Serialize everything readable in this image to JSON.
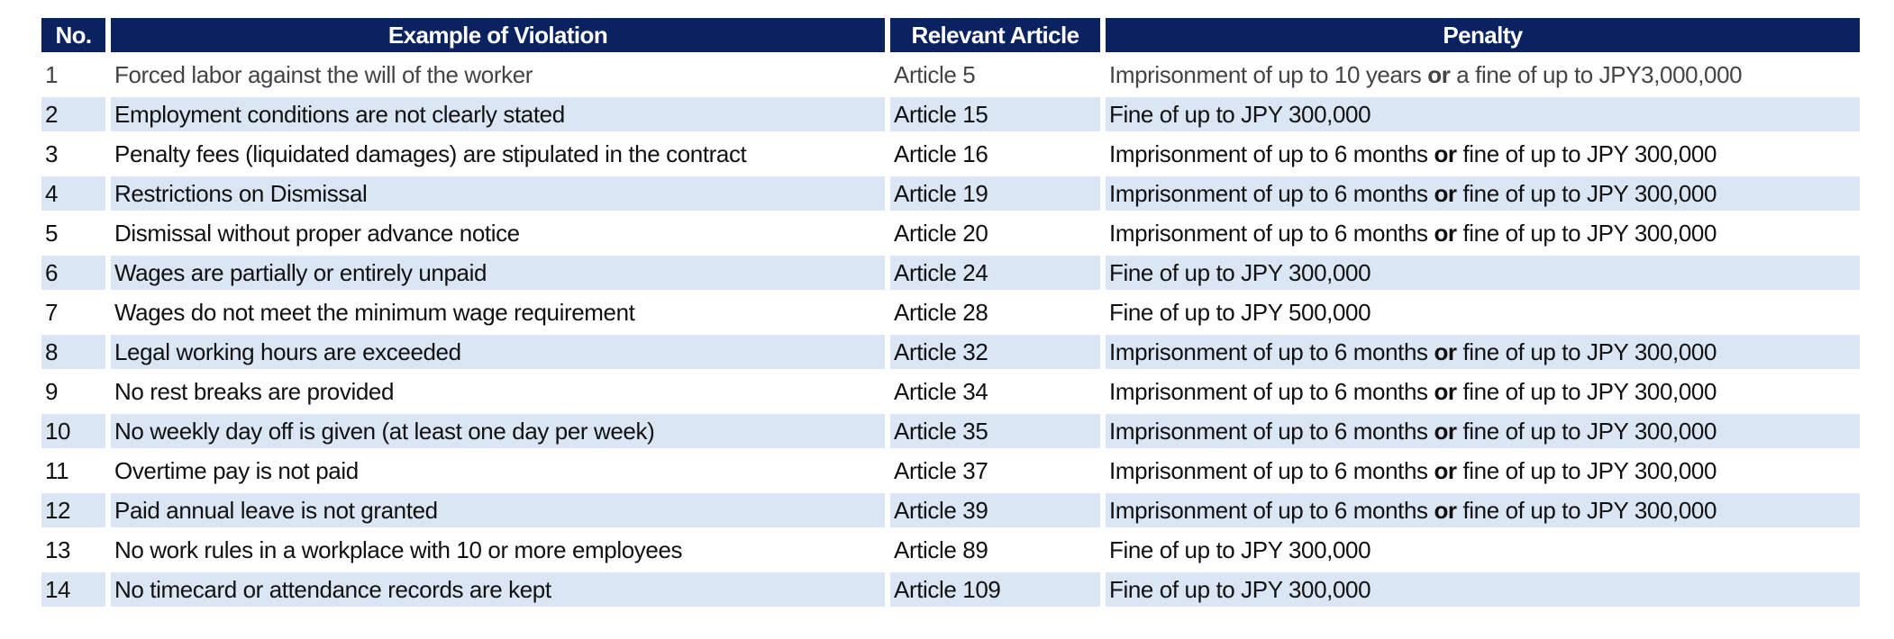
{
  "headers": {
    "no": "No.",
    "violation": "Example of Violation",
    "article": "Relevant Article",
    "penalty": "Penalty"
  },
  "colors": {
    "header_bg": "#0b2260",
    "stripe": "#dbe6f5"
  },
  "rows": [
    {
      "no": "1",
      "violation": "Forced labor against the will of the worker",
      "article": "Article 5",
      "penalty_pre": "Imprisonment of up to 10 years ",
      "penalty_or": "or",
      "penalty_post": " a fine of up to JPY3,000,000"
    },
    {
      "no": "2",
      "violation": "Employment conditions are not clearly stated",
      "article": "Article 15",
      "penalty_pre": "Fine of up to JPY 300,000",
      "penalty_or": "",
      "penalty_post": ""
    },
    {
      "no": "3",
      "violation": "Penalty fees (liquidated damages) are stipulated in the contract",
      "article": "Article 16",
      "penalty_pre": "Imprisonment of up to 6 months ",
      "penalty_or": "or",
      "penalty_post": " fine of up to JPY 300,000"
    },
    {
      "no": "4",
      "violation": "Restrictions on Dismissal",
      "article": "Article 19",
      "penalty_pre": "Imprisonment of up to 6 months ",
      "penalty_or": "or",
      "penalty_post": " fine of up to JPY 300,000"
    },
    {
      "no": "5",
      "violation": "Dismissal without proper advance notice",
      "article": "Article 20",
      "penalty_pre": "Imprisonment of up to 6 months ",
      "penalty_or": "or",
      "penalty_post": " fine of up to JPY 300,000"
    },
    {
      "no": "6",
      "violation": "Wages are partially or entirely unpaid",
      "article": "Article 24",
      "penalty_pre": "Fine of up to JPY 300,000",
      "penalty_or": "",
      "penalty_post": ""
    },
    {
      "no": "7",
      "violation": "Wages do not meet the minimum wage requirement",
      "article": "Article 28",
      "penalty_pre": "Fine of up to JPY 500,000",
      "penalty_or": "",
      "penalty_post": ""
    },
    {
      "no": "8",
      "violation": "Legal working hours are exceeded",
      "article": "Article 32",
      "penalty_pre": "Imprisonment of up to 6 months ",
      "penalty_or": "or",
      "penalty_post": " fine of up to JPY 300,000"
    },
    {
      "no": "9",
      "violation": "No rest breaks are provided",
      "article": "Article 34",
      "penalty_pre": "Imprisonment of up to 6 months ",
      "penalty_or": "or",
      "penalty_post": " fine of up to JPY 300,000"
    },
    {
      "no": "10",
      "violation": "No weekly day off is given (at least one day per week)",
      "article": "Article 35",
      "penalty_pre": "Imprisonment of up to 6 months ",
      "penalty_or": "or",
      "penalty_post": " fine of up to JPY 300,000"
    },
    {
      "no": "11",
      "violation": "Overtime pay is not paid",
      "article": "Article 37",
      "penalty_pre": "Imprisonment of up to 6 months ",
      "penalty_or": "or",
      "penalty_post": " fine of up to JPY 300,000"
    },
    {
      "no": "12",
      "violation": "Paid annual leave is not granted",
      "article": "Article 39",
      "penalty_pre": "Imprisonment of up to 6 months ",
      "penalty_or": "or",
      "penalty_post": " fine of up to JPY 300,000"
    },
    {
      "no": "13",
      "violation": "No work rules in a workplace with 10 or more employees",
      "article": "Article 89",
      "penalty_pre": "Fine of up to JPY 300,000",
      "penalty_or": "",
      "penalty_post": ""
    },
    {
      "no": "14",
      "violation": "No timecard or attendance records are kept",
      "article": "Article 109",
      "penalty_pre": "Fine of up to JPY 300,000",
      "penalty_or": "",
      "penalty_post": ""
    }
  ]
}
